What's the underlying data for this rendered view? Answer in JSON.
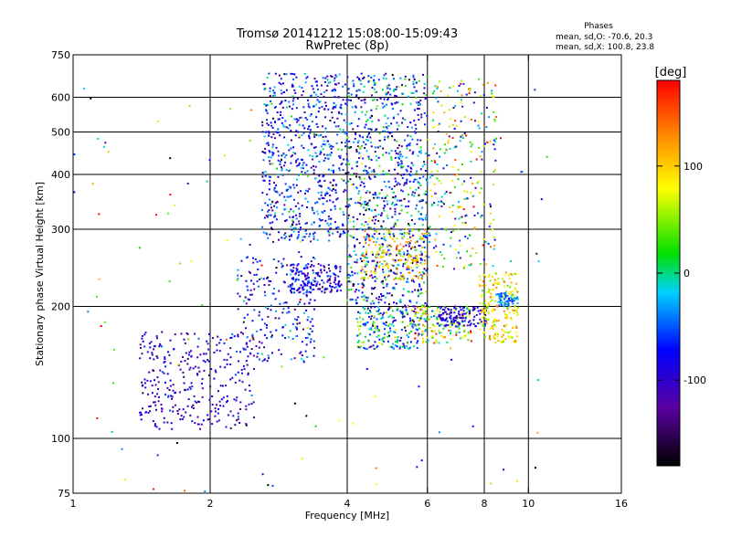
{
  "chart_data": {
    "type": "scatter",
    "title": "Tromsø 20141212 15:08:00-15:09:43",
    "subtitle": "RwPretec (8p)",
    "xlabel": "Frequency [MHz]",
    "ylabel": "Stationary phase Virtual Height [km]",
    "x_scale": "log",
    "y_scale": "log",
    "xlim": [
      1,
      16
    ],
    "ylim": [
      75,
      750
    ],
    "x_ticks": [
      1,
      2,
      4,
      6,
      8,
      10,
      16
    ],
    "x_tick_labels": [
      "1",
      "2",
      "4",
      "6",
      "8",
      "10",
      "16"
    ],
    "y_ticks": [
      75,
      100,
      200,
      300,
      400,
      500,
      600,
      750
    ],
    "y_tick_labels": [
      "75",
      "100",
      "200",
      "300",
      "400",
      "500",
      "600",
      "750"
    ],
    "grid_x": [
      2,
      4,
      6,
      8,
      10
    ],
    "grid_y": [
      100,
      200,
      300,
      400,
      500,
      600
    ],
    "phase_stats": {
      "heading": "Phases",
      "line_o": "mean, sd,O: -70.6, 20.3",
      "line_x": "mean, sd,X: 100.8, 23.8"
    },
    "colorbar": {
      "unit_label": "[deg]",
      "range": [
        -180,
        180
      ],
      "ticks": [
        100,
        0,
        -100
      ],
      "tick_labels": [
        "100",
        "0",
        "-100"
      ]
    },
    "clusters": [
      {
        "f_min": 1.4,
        "f_max": 2.5,
        "h_min": 105,
        "h_max": 175,
        "phase_mean": -100,
        "phase_sd": 25,
        "n": 320
      },
      {
        "f_min": 2.3,
        "f_max": 3.4,
        "h_min": 150,
        "h_max": 260,
        "phase_mean": -80,
        "phase_sd": 35,
        "n": 220
      },
      {
        "f_min": 2.6,
        "f_max": 4.0,
        "h_min": 280,
        "h_max": 680,
        "phase_mean": -70,
        "phase_sd": 40,
        "n": 650
      },
      {
        "f_min": 3.0,
        "f_max": 3.9,
        "h_min": 215,
        "h_max": 250,
        "phase_mean": -90,
        "phase_sd": 30,
        "n": 160
      },
      {
        "f_min": 4.0,
        "f_max": 6.0,
        "h_min": 200,
        "h_max": 680,
        "phase_mean": -60,
        "phase_sd": 60,
        "n": 900
      },
      {
        "f_min": 4.2,
        "f_max": 5.8,
        "h_min": 160,
        "h_max": 200,
        "phase_mean": -30,
        "phase_sd": 70,
        "n": 220
      },
      {
        "f_min": 4.3,
        "f_max": 6.0,
        "h_min": 230,
        "h_max": 300,
        "phase_mean": 100,
        "phase_sd": 30,
        "n": 160
      },
      {
        "f_min": 5.6,
        "f_max": 7.5,
        "h_min": 165,
        "h_max": 200,
        "phase_mean": 60,
        "phase_sd": 60,
        "n": 160
      },
      {
        "f_min": 6.3,
        "f_max": 8.1,
        "h_min": 180,
        "h_max": 200,
        "phase_mean": -95,
        "phase_sd": 20,
        "n": 120
      },
      {
        "f_min": 6.0,
        "f_max": 8.5,
        "h_min": 240,
        "h_max": 660,
        "phase_mean": 30,
        "phase_sd": 90,
        "n": 260
      },
      {
        "f_min": 7.8,
        "f_max": 9.5,
        "h_min": 165,
        "h_max": 240,
        "phase_mean": 90,
        "phase_sd": 30,
        "n": 200
      },
      {
        "f_min": 8.5,
        "f_max": 9.5,
        "h_min": 200,
        "h_max": 215,
        "phase_mean": -45,
        "phase_sd": 20,
        "n": 60
      },
      {
        "f_min": 1.0,
        "f_max": 11.0,
        "h_min": 75,
        "h_max": 650,
        "phase_mean": 0,
        "phase_sd": 110,
        "n": 140
      }
    ]
  }
}
